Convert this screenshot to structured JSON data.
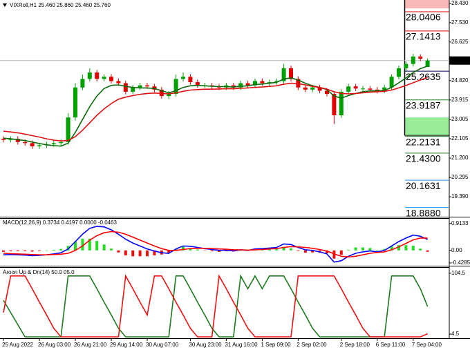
{
  "chart_data": [
    {
      "type": "candlestick",
      "title": "VIXRoll,H1  25.460 25.860 25.460 25.760",
      "categories": [
        "25 Aug 2022",
        null,
        null,
        null,
        null,
        "26 Aug 03:00",
        null,
        null,
        null,
        null,
        "26 Aug 21:00",
        null,
        null,
        null,
        null,
        "29 Aug 14:00",
        null,
        null,
        null,
        null,
        "30 Aug 07:00",
        null,
        null,
        null,
        null,
        null,
        "30 Aug 23:00",
        null,
        null,
        null,
        null,
        "31 Aug 16:00",
        null,
        null,
        null,
        null,
        "1 Sep 09:00",
        null,
        null,
        null,
        null,
        "2 Sep 02:00",
        null,
        null,
        null,
        null,
        null,
        "2 Sep 18:00",
        null,
        null,
        null,
        null,
        "6 Sep 11:00",
        null,
        null,
        null,
        null,
        "7 Sep 04:00",
        null,
        null
      ],
      "open": [
        22.1,
        22.05,
        22.1,
        21.95,
        21.9,
        21.75,
        21.8,
        21.85,
        21.9,
        21.95,
        23.1,
        24.5,
        24.9,
        25.2,
        24.9,
        25.0,
        24.8,
        24.7,
        24.3,
        24.5,
        24.6,
        24.55,
        24.4,
        24.1,
        24.2,
        24.9,
        25.0,
        24.75,
        24.6,
        24.6,
        24.55,
        24.5,
        24.6,
        24.5,
        24.7,
        24.6,
        24.8,
        24.7,
        24.75,
        24.8,
        25.4,
        24.9,
        24.5,
        24.4,
        24.5,
        24.35,
        24.2,
        23.2,
        24.3,
        24.55,
        24.45,
        24.45,
        24.4,
        24.35,
        24.5,
        25.0,
        25.4,
        25.6,
        25.95,
        25.46
      ],
      "high": [
        22.22,
        22.22,
        22.22,
        22.07,
        22.02,
        21.92,
        21.97,
        22.02,
        22.07,
        23.3,
        24.7,
        25.1,
        25.4,
        25.32,
        25.12,
        25.12,
        24.92,
        24.82,
        24.62,
        24.72,
        24.72,
        24.67,
        24.52,
        24.32,
        25.1,
        25.2,
        25.12,
        24.87,
        24.72,
        24.72,
        24.67,
        24.72,
        24.72,
        24.82,
        24.82,
        24.92,
        24.92,
        24.87,
        24.92,
        25.6,
        25.52,
        25.02,
        24.62,
        24.62,
        24.62,
        24.47,
        24.32,
        24.42,
        24.67,
        24.67,
        24.57,
        24.57,
        24.52,
        24.62,
        25.12,
        25.52,
        25.72,
        26.07,
        26.05,
        25.86
      ],
      "low": [
        21.93,
        21.93,
        21.83,
        21.78,
        21.63,
        21.63,
        21.68,
        21.73,
        21.78,
        21.83,
        22.95,
        24.38,
        24.78,
        24.78,
        24.78,
        24.68,
        24.58,
        24.18,
        24.18,
        24.38,
        24.43,
        24.28,
        23.98,
        23.95,
        24.08,
        24.78,
        24.63,
        24.48,
        24.48,
        24.43,
        24.38,
        24.38,
        24.38,
        24.38,
        24.48,
        24.48,
        24.58,
        24.58,
        24.63,
        24.68,
        24.78,
        24.38,
        24.28,
        24.28,
        24.23,
        24.08,
        22.8,
        23.08,
        24.18,
        24.33,
        24.33,
        24.28,
        24.23,
        24.23,
        24.38,
        24.88,
        25.28,
        25.48,
        25.73,
        25.46
      ],
      "close": [
        22.05,
        22.1,
        21.95,
        21.9,
        21.75,
        21.8,
        21.85,
        21.9,
        21.95,
        23.1,
        24.5,
        24.9,
        25.2,
        24.9,
        25.0,
        24.8,
        24.7,
        24.3,
        24.5,
        24.6,
        24.55,
        24.4,
        24.1,
        24.2,
        24.9,
        25.0,
        24.75,
        24.6,
        24.6,
        24.55,
        24.5,
        24.6,
        24.5,
        24.7,
        24.6,
        24.8,
        24.7,
        24.75,
        24.8,
        25.4,
        24.9,
        24.5,
        24.4,
        24.5,
        24.35,
        24.2,
        23.2,
        24.3,
        24.55,
        24.45,
        24.45,
        24.4,
        24.35,
        24.5,
        25.0,
        25.4,
        25.6,
        25.95,
        25.85,
        25.76
      ],
      "up_color": "#00a000",
      "down_color": "#e00000",
      "series": [
        {
          "color": "#0b6b0b",
          "values": [
            22.13,
            22.1,
            22.06,
            22.02,
            21.95,
            21.88,
            21.82,
            21.78,
            21.76,
            21.9,
            22.4,
            23.0,
            23.6,
            24.1,
            24.45,
            24.6,
            24.62,
            24.55,
            24.5,
            24.48,
            24.48,
            24.45,
            24.35,
            24.25,
            24.35,
            24.5,
            24.58,
            24.6,
            24.58,
            24.56,
            24.54,
            24.54,
            24.52,
            24.56,
            24.58,
            24.64,
            24.66,
            24.7,
            24.74,
            24.9,
            24.95,
            24.85,
            24.7,
            24.58,
            24.5,
            24.4,
            24.1,
            24.0,
            24.12,
            24.22,
            24.3,
            24.34,
            24.34,
            24.36,
            24.5,
            24.72,
            24.95,
            25.2,
            25.38,
            25.5
          ]
        },
        {
          "color": "#e01010",
          "values": [
            22.46,
            22.42,
            22.38,
            22.32,
            22.25,
            22.18,
            22.1,
            22.04,
            22.0,
            22.02,
            22.2,
            22.5,
            22.85,
            23.2,
            23.5,
            23.75,
            23.95,
            24.05,
            24.12,
            24.18,
            24.22,
            24.24,
            24.22,
            24.2,
            24.25,
            24.32,
            24.38,
            24.4,
            24.42,
            24.42,
            24.43,
            24.44,
            24.44,
            24.46,
            24.48,
            24.5,
            24.52,
            24.55,
            24.58,
            24.65,
            24.7,
            24.68,
            24.62,
            24.55,
            24.5,
            24.42,
            24.3,
            24.22,
            24.2,
            24.22,
            24.25,
            24.28,
            24.3,
            24.32,
            24.38,
            24.48,
            24.6,
            24.72,
            24.85,
            24.97
          ]
        }
      ],
      "ylim": [
        18.49,
        28.59
      ],
      "yticks": [
        {
          "value": 28.43,
          "label": "28.430"
        },
        {
          "value": 27.53,
          "label": "27.530"
        },
        {
          "value": 26.625,
          "label": "26.625"
        },
        {
          "value": 24.82,
          "label": "24.820"
        },
        {
          "value": 23.915,
          "label": "23.915"
        },
        {
          "value": 23.005,
          "label": "23.005"
        },
        {
          "value": 22.105,
          "label": "22.105"
        },
        {
          "value": 21.2,
          "label": "21.200"
        },
        {
          "value": 20.295,
          "label": "20.295"
        },
        {
          "value": 19.39,
          "label": "19.390"
        }
      ],
      "current_price": {
        "value": 25.76,
        "label": "25.760"
      },
      "zones": [
        {
          "from": 28.2,
          "to": 28.59,
          "color": "#f9b8b8"
        },
        {
          "from": 22.26,
          "to": 23.1,
          "color": "#98ec98"
        }
      ],
      "levels": [
        {
          "value": 28.0406,
          "label": "28.0406",
          "color": "#e00000"
        },
        {
          "value": 27.1413,
          "label": "27.1413",
          "color": "#e00000"
        },
        {
          "value": 25.2635,
          "label": "25.2635",
          "color": "#00004d"
        },
        {
          "value": 23.9187,
          "label": "23.9187",
          "color": "#1e7a1e"
        },
        {
          "value": 22.2131,
          "label": "22.2131",
          "color": "#1e7a1e"
        },
        {
          "value": 21.43,
          "label": "21.4300",
          "color": "#1e7a1e"
        },
        {
          "value": 20.1631,
          "label": "20.1631",
          "color": "#1e90ff"
        },
        {
          "value": 18.888,
          "label": "18.8880",
          "color": "#1e90ff"
        }
      ]
    },
    {
      "type": "macd",
      "title": "MACD(12,26,9) 0.3734 0.4197 0.0000 -0.0463",
      "histogram": {
        "positive_color": "#22dd22",
        "negative_color": "#ee1111",
        "values": [
          -0.05,
          -0.03,
          -0.03,
          -0.03,
          -0.04,
          -0.02,
          0.0,
          0.02,
          0.05,
          0.15,
          0.3,
          0.4,
          0.4,
          0.32,
          0.2,
          0.06,
          -0.07,
          -0.17,
          -0.2,
          -0.2,
          -0.2,
          -0.17,
          -0.14,
          -0.1,
          0.05,
          0.12,
          0.08,
          0.03,
          -0.01,
          -0.03,
          -0.05,
          -0.03,
          -0.04,
          0.0,
          -0.01,
          0.03,
          0.03,
          0.03,
          0.04,
          0.12,
          0.07,
          -0.02,
          -0.08,
          -0.07,
          -0.08,
          -0.1,
          -0.28,
          -0.15,
          0.02,
          0.1,
          0.1,
          0.08,
          0.02,
          0.05,
          0.13,
          0.18,
          0.18,
          0.16,
          0.06,
          -0.0463
        ]
      },
      "series": [
        {
          "color": "#0000ff",
          "values": [
            -0.15,
            -0.14,
            -0.15,
            -0.16,
            -0.18,
            -0.17,
            -0.15,
            -0.12,
            -0.08,
            0.05,
            0.3,
            0.55,
            0.75,
            0.82,
            0.8,
            0.7,
            0.55,
            0.38,
            0.25,
            0.15,
            0.05,
            -0.02,
            -0.08,
            -0.1,
            0.05,
            0.15,
            0.14,
            0.1,
            0.06,
            0.03,
            0.0,
            0.01,
            -0.02,
            0.02,
            0.0,
            0.05,
            0.06,
            0.08,
            0.1,
            0.22,
            0.2,
            0.1,
            0.02,
            0.0,
            -0.05,
            -0.12,
            -0.4,
            -0.35,
            -0.2,
            -0.1,
            -0.05,
            -0.02,
            -0.05,
            0.0,
            0.15,
            0.3,
            0.42,
            0.52,
            0.48,
            0.3734
          ]
        },
        {
          "color": "#ff0000",
          "values": [
            -0.1,
            -0.11,
            -0.12,
            -0.13,
            -0.14,
            -0.15,
            -0.15,
            -0.14,
            -0.13,
            -0.1,
            0.0,
            0.15,
            0.35,
            0.5,
            0.6,
            0.64,
            0.62,
            0.55,
            0.45,
            0.35,
            0.25,
            0.15,
            0.06,
            0.0,
            0.0,
            0.03,
            0.06,
            0.07,
            0.07,
            0.06,
            0.05,
            0.04,
            0.02,
            0.02,
            0.01,
            0.02,
            0.03,
            0.05,
            0.06,
            0.1,
            0.13,
            0.12,
            0.1,
            0.07,
            0.03,
            -0.02,
            -0.12,
            -0.2,
            -0.22,
            -0.2,
            -0.15,
            -0.1,
            -0.07,
            -0.05,
            0.02,
            0.12,
            0.24,
            0.36,
            0.42,
            0.4197
          ]
        }
      ],
      "ylim": [
        -0.498,
        1.075
      ],
      "yticks": [
        0.9133,
        {
          "value": 0,
          "label": "0.00"
        },
        -0.4285
      ]
    },
    {
      "type": "aroon",
      "title": "Aroon Up & Dn(14) 50.0 05.0",
      "series": [
        {
          "color": "#1e7a1e",
          "values": [
            60,
            40,
            20,
            0,
            0,
            0,
            0,
            0,
            0,
            100,
            100,
            100,
            100,
            79,
            57,
            36,
            14,
            0,
            0,
            0,
            0,
            0,
            0,
            0,
            100,
            100,
            79,
            57,
            36,
            14,
            0,
            0,
            0,
            100,
            79,
            100,
            79,
            100,
            100,
            100,
            79,
            57,
            36,
            14,
            0,
            0,
            0,
            0,
            0,
            0,
            0,
            0,
            0,
            0,
            100,
            100,
            100,
            100,
            79,
            50
          ]
        },
        {
          "color": "#ee1111",
          "values": [
            40,
            100,
            100,
            100,
            79,
            57,
            36,
            14,
            0,
            0,
            0,
            0,
            0,
            0,
            0,
            0,
            0,
            100,
            79,
            57,
            36,
            100,
            100,
            79,
            57,
            36,
            14,
            0,
            0,
            0,
            100,
            79,
            57,
            36,
            14,
            0,
            0,
            0,
            0,
            0,
            0,
            100,
            100,
            100,
            100,
            100,
            100,
            79,
            57,
            36,
            14,
            0,
            0,
            0,
            0,
            0,
            0,
            0,
            0,
            5
          ]
        }
      ],
      "ylim": [
        -2.2,
        113.4
      ],
      "yticks": [
        104.5,
        4.5
      ]
    }
  ]
}
